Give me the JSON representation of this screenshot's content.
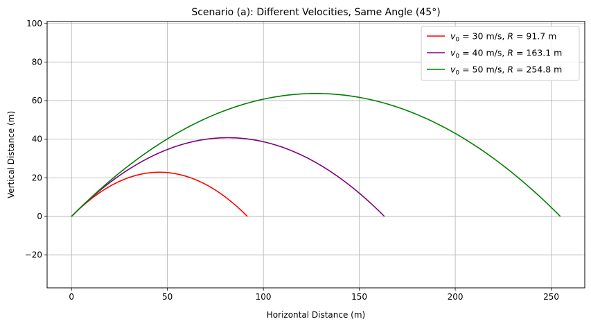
{
  "chart_data": {
    "type": "line",
    "title": "Scenario (a): Different Velocities, Same Angle (45°)",
    "xlabel": "Horizontal Distance (m)",
    "ylabel": "Vertical Distance (m)",
    "xlim": [
      -12.7,
      267.5
    ],
    "ylim": [
      -37,
      101
    ],
    "xticks": [
      0,
      50,
      100,
      150,
      200,
      250
    ],
    "yticks": [
      -20,
      0,
      20,
      40,
      60,
      80,
      100
    ],
    "xtick_labels": [
      "0",
      "50",
      "100",
      "150",
      "200",
      "250"
    ],
    "ytick_labels": [
      "−20",
      "0",
      "20",
      "40",
      "60",
      "80",
      "100"
    ],
    "grid": true,
    "legend_position": "top-right",
    "series": [
      {
        "name": "v0 = 30 m/s, R = 91.7 m",
        "legend": {
          "v_symbol": "v",
          "v_sub": "0",
          "v_rest": " = 30 m/s, ",
          "r_symbol": "R",
          "r_rest": " = 91.7 m"
        },
        "color": "#ff0000",
        "v0": 30,
        "range": 91.7,
        "max_height": 22.9,
        "x": [
          0,
          10,
          20,
          30,
          40,
          45.9,
          50,
          60,
          70,
          80,
          91.7
        ],
        "y": [
          0,
          8.9,
          15.6,
          20.2,
          22.5,
          22.9,
          22.7,
          20.7,
          16.6,
          10.2,
          0
        ]
      },
      {
        "name": "v0 = 40 m/s, R = 163.1 m",
        "legend": {
          "v_symbol": "v",
          "v_sub": "0",
          "v_rest": " = 40 m/s, ",
          "r_symbol": "R",
          "r_rest": " = 163.1 m"
        },
        "color": "#800080",
        "v0": 40,
        "range": 163.1,
        "max_height": 40.8,
        "x": [
          0,
          20,
          40,
          60,
          81.6,
          100,
          120,
          140,
          163.1
        ],
        "y": [
          0,
          17.5,
          30.2,
          37.9,
          40.8,
          38.7,
          31.6,
          19.8,
          0
        ]
      },
      {
        "name": "v0 = 50 m/s, R = 254.8 m",
        "legend": {
          "v_symbol": "v",
          "v_sub": "0",
          "v_rest": " = 50 m/s, ",
          "r_symbol": "R",
          "r_rest": " = 254.8 m"
        },
        "color": "#008000",
        "v0": 50,
        "range": 254.8,
        "max_height": 63.7,
        "x": [
          0,
          50,
          100,
          127.4,
          150,
          200,
          254.8
        ],
        "y": [
          0,
          40.2,
          60.8,
          63.7,
          61.7,
          43.0,
          0
        ]
      }
    ]
  }
}
